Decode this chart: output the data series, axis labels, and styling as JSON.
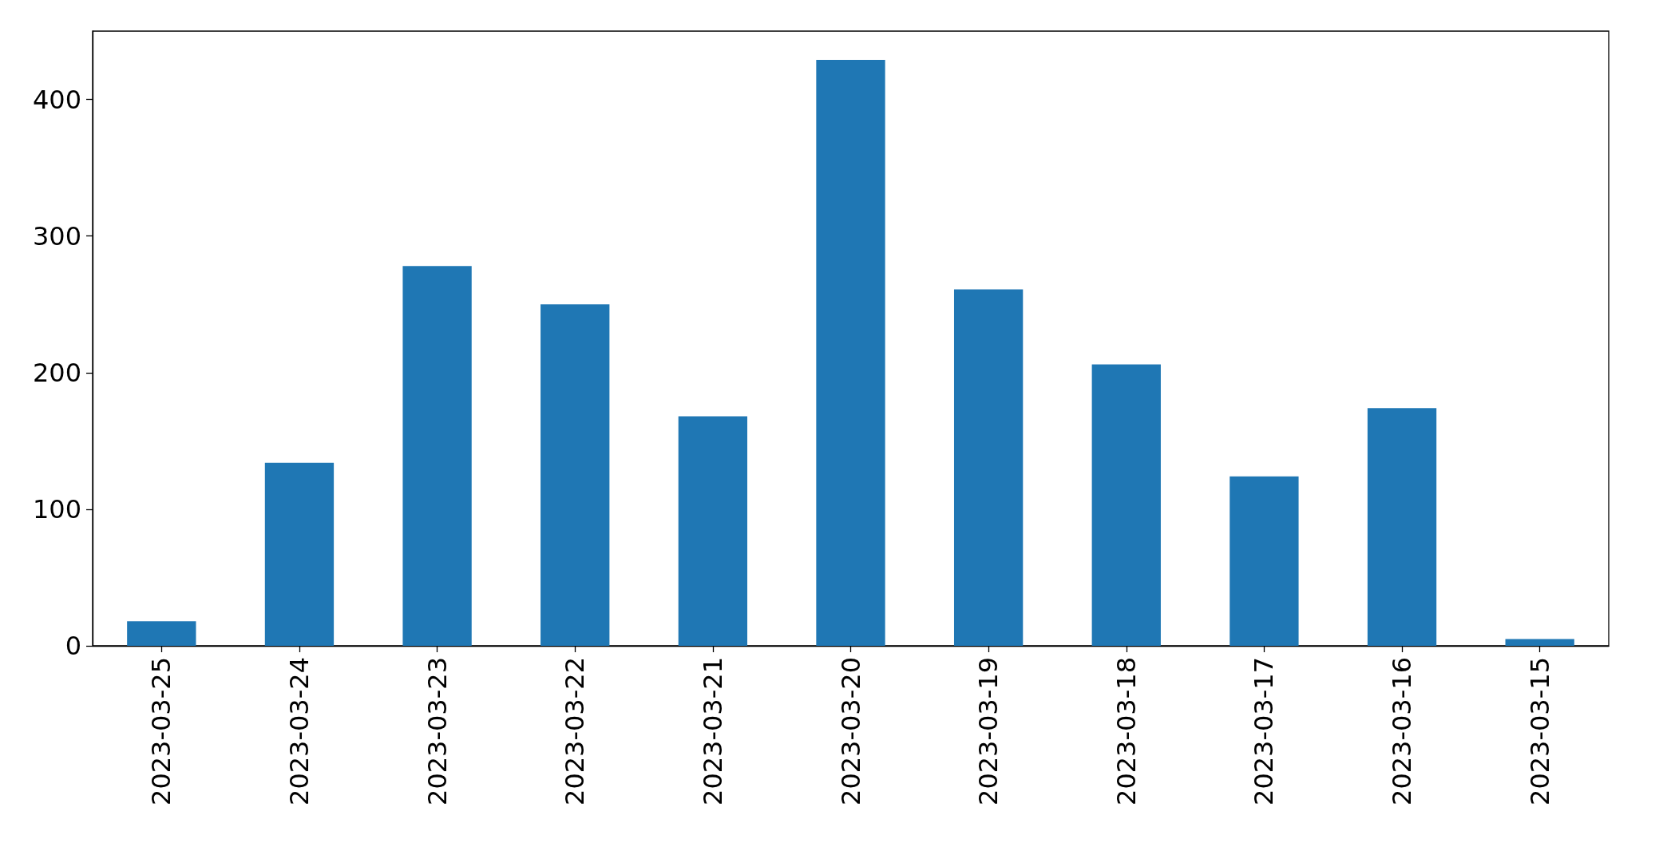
{
  "chart_data": {
    "type": "bar",
    "categories": [
      "2023-03-25",
      "2023-03-24",
      "2023-03-23",
      "2023-03-22",
      "2023-03-21",
      "2023-03-20",
      "2023-03-19",
      "2023-03-18",
      "2023-03-17",
      "2023-03-16",
      "2023-03-15"
    ],
    "values": [
      18,
      134,
      278,
      250,
      168,
      429,
      261,
      206,
      124,
      174,
      5
    ],
    "color": "#1f77b4",
    "ylim": [
      0,
      450
    ],
    "yticks": [
      0,
      100,
      200,
      300,
      400
    ],
    "grid": false
  }
}
